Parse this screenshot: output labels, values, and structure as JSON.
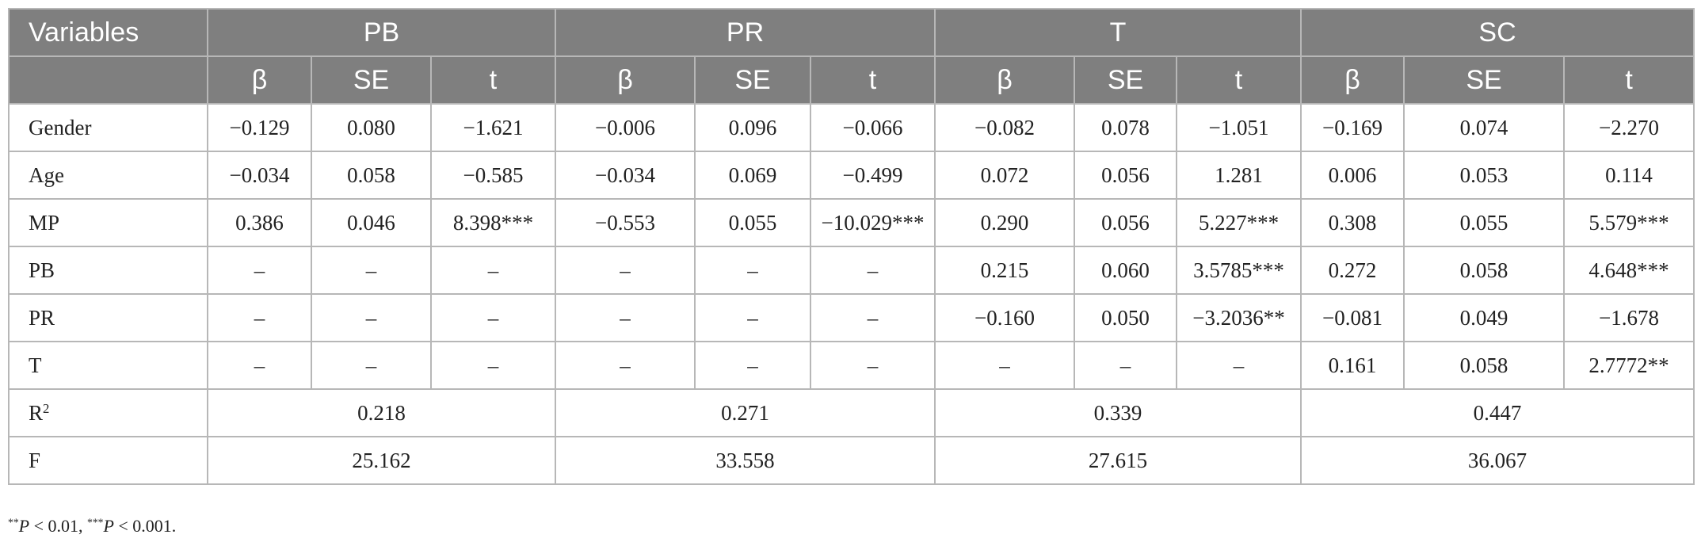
{
  "table": {
    "header": {
      "variables_label": "Variables",
      "groups": [
        "PB",
        "PR",
        "T",
        "SC"
      ],
      "subcolumns": [
        "β",
        "SE",
        "t"
      ]
    },
    "rows": [
      {
        "label": "Gender",
        "cells": [
          "−0.129",
          "0.080",
          "−1.621",
          "−0.006",
          "0.096",
          "−0.066",
          "−0.082",
          "0.078",
          "−1.051",
          "−0.169",
          "0.074",
          "−2.270"
        ]
      },
      {
        "label": "Age",
        "cells": [
          "−0.034",
          "0.058",
          "−0.585",
          "−0.034",
          "0.069",
          "−0.499",
          "0.072",
          "0.056",
          "1.281",
          "0.006",
          "0.053",
          "0.114"
        ]
      },
      {
        "label": "MP",
        "cells": [
          "0.386",
          "0.046",
          "8.398***",
          "−0.553",
          "0.055",
          "−10.029***",
          "0.290",
          "0.056",
          "5.227***",
          "0.308",
          "0.055",
          "5.579***"
        ]
      },
      {
        "label": "PB",
        "cells": [
          "–",
          "–",
          "–",
          "–",
          "–",
          "–",
          "0.215",
          "0.060",
          "3.5785***",
          "0.272",
          "0.058",
          "4.648***"
        ]
      },
      {
        "label": "PR",
        "cells": [
          "–",
          "–",
          "–",
          "–",
          "–",
          "–",
          "−0.160",
          "0.050",
          "−3.2036**",
          "−0.081",
          "0.049",
          "−1.678"
        ]
      },
      {
        "label": "T",
        "cells": [
          "–",
          "–",
          "–",
          "–",
          "–",
          "–",
          "–",
          "–",
          "–",
          "0.161",
          "0.058",
          "2.7772**"
        ]
      }
    ],
    "r2": {
      "label_base": "R",
      "label_sup": "2",
      "values": [
        "0.218",
        "0.271",
        "0.339",
        "0.447"
      ]
    },
    "f": {
      "label": "F",
      "values": [
        "25.162",
        "33.558",
        "27.615",
        "36.067"
      ]
    }
  },
  "footnote": {
    "part1_stars": "**",
    "part1_p": "P",
    "part1_rest": " < 0.01, ",
    "part2_stars": "***",
    "part2_p": "P",
    "part2_rest": " < 0.001."
  }
}
